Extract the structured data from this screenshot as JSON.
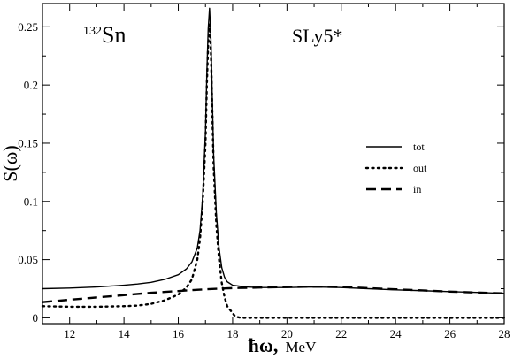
{
  "chart_data": {
    "type": "line",
    "xlabel_symbol": "ħω,",
    "xlabel_unit": "MeV",
    "ylabel": "S(ω)",
    "xlim": [
      11,
      28
    ],
    "ylim": [
      -0.005,
      0.27
    ],
    "xticks": [
      12,
      14,
      16,
      18,
      20,
      22,
      24,
      26,
      28
    ],
    "yticks": [
      0,
      0.05,
      0.1,
      0.15,
      0.2,
      0.25
    ],
    "ytick_labels": [
      "0",
      "0.05",
      "0.1",
      "0.15",
      "0.2",
      "0.25"
    ],
    "annotations": {
      "nucleus_mass": "132",
      "nucleus_symbol": "Sn",
      "force": "SLy5*"
    },
    "legend_position": "right",
    "grid": false,
    "series": [
      {
        "name": "tot",
        "style": "solid",
        "x": [
          11,
          12,
          13,
          14,
          14.5,
          15,
          15.5,
          16,
          16.3,
          16.5,
          16.7,
          16.8,
          16.9,
          17.0,
          17.05,
          17.1,
          17.15,
          17.2,
          17.25,
          17.3,
          17.4,
          17.5,
          17.6,
          17.7,
          17.8,
          18.0,
          18.5,
          19,
          20,
          21,
          22,
          23,
          24,
          25,
          26,
          27,
          28
        ],
        "y": [
          0.025,
          0.0255,
          0.0265,
          0.028,
          0.029,
          0.0305,
          0.033,
          0.037,
          0.042,
          0.048,
          0.06,
          0.075,
          0.105,
          0.16,
          0.21,
          0.248,
          0.266,
          0.24,
          0.19,
          0.14,
          0.09,
          0.06,
          0.043,
          0.035,
          0.031,
          0.028,
          0.0265,
          0.026,
          0.026,
          0.0265,
          0.026,
          0.025,
          0.024,
          0.0233,
          0.0225,
          0.0218,
          0.021
        ]
      },
      {
        "name": "out",
        "style": "dotted",
        "x": [
          11,
          12,
          13,
          14,
          14.5,
          15,
          15.5,
          16,
          16.3,
          16.5,
          16.7,
          16.8,
          16.9,
          17.0,
          17.05,
          17.1,
          17.15,
          17.2,
          17.25,
          17.3,
          17.4,
          17.5,
          17.6,
          17.7,
          17.8,
          18.0,
          18.1,
          18.3,
          19,
          20,
          22,
          24,
          26,
          28
        ],
        "y": [
          0.01,
          0.0095,
          0.0095,
          0.01,
          0.0105,
          0.012,
          0.015,
          0.02,
          0.026,
          0.033,
          0.05,
          0.068,
          0.1,
          0.15,
          0.2,
          0.235,
          0.252,
          0.23,
          0.18,
          0.13,
          0.08,
          0.05,
          0.03,
          0.018,
          0.01,
          0.004,
          0.001,
          0,
          0,
          0,
          0,
          0,
          0,
          0
        ]
      },
      {
        "name": "in",
        "style": "dashed",
        "x": [
          11,
          12,
          13,
          14,
          15,
          16,
          16.5,
          17,
          17.5,
          18,
          19,
          20,
          21,
          22,
          23,
          24,
          25,
          26,
          27,
          28
        ],
        "y": [
          0.0135,
          0.0155,
          0.0175,
          0.0195,
          0.0215,
          0.023,
          0.0238,
          0.0245,
          0.025,
          0.0255,
          0.026,
          0.0265,
          0.0267,
          0.0265,
          0.0255,
          0.0245,
          0.0235,
          0.0225,
          0.0217,
          0.021
        ]
      }
    ]
  }
}
